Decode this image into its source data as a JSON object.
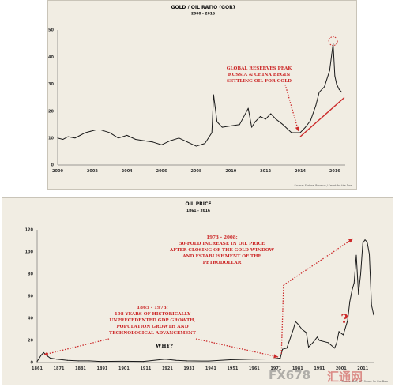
{
  "chart_data": [
    {
      "type": "line",
      "title": "GOLD / OIL RATIO (GOR)",
      "subtitle": "2000 - 2016",
      "x_ticks": [
        "2000",
        "2002",
        "2004",
        "2006",
        "2008",
        "2010",
        "2012",
        "2014",
        "2016"
      ],
      "y_ticks": [
        "0",
        "10",
        "20",
        "30",
        "40",
        "50"
      ],
      "xlim": [
        2000,
        2016.6
      ],
      "ylim": [
        0,
        50
      ],
      "grid": false,
      "series": [
        {
          "x": [
            2000.0,
            2000.3,
            2000.6,
            2001.0,
            2001.3,
            2001.6,
            2001.9,
            2002.2,
            2002.5,
            2003.0,
            2003.5,
            2004.0,
            2004.5,
            2005.0,
            2005.5,
            2006.0,
            2006.5,
            2007.0,
            2007.5,
            2008.0,
            2008.5,
            2008.9,
            2009.0,
            2009.2,
            2009.5,
            2010.0,
            2010.5,
            2011.0,
            2011.2,
            2011.4,
            2011.7,
            2012.0,
            2012.3,
            2012.6,
            2013.0,
            2013.5,
            2014.0,
            2014.3,
            2014.6,
            2014.9,
            2015.1,
            2015.4,
            2015.7,
            2015.9,
            2016.0,
            2016.1,
            2016.25,
            2016.4
          ],
          "y": [
            10,
            9.5,
            10.5,
            10,
            11,
            12,
            12.5,
            13,
            13,
            12,
            10,
            11,
            9.5,
            9,
            8.5,
            7.5,
            9,
            10,
            8.5,
            7,
            8,
            12,
            26,
            16,
            14,
            14.5,
            15,
            21,
            14,
            16,
            18,
            17,
            19,
            17,
            15,
            12,
            12,
            14,
            16.5,
            22,
            27,
            29,
            35,
            45,
            33,
            30,
            28,
            27
          ]
        }
      ],
      "annotations": {
        "peak_text": [
          "GLOBAL RESERVES PEAK",
          "RUSSIA & CHINA BEGIN",
          "SETTLING OIL FOR GOLD"
        ],
        "source": "Source: Federal Reserve / Smart for the Dow"
      }
    },
    {
      "type": "line",
      "title": "OIL PRICE",
      "subtitle": "1861 - 2016",
      "x_ticks": [
        "1861",
        "1871",
        "1881",
        "1891",
        "1901",
        "1911",
        "1921",
        "1931",
        "1941",
        "1951",
        "1961",
        "1971",
        "1981",
        "1991",
        "2001",
        "2011"
      ],
      "y_ticks": [
        "0",
        "20",
        "40",
        "60",
        "80",
        "100",
        "120"
      ],
      "xlim": [
        1861,
        2016
      ],
      "ylim": [
        0,
        120
      ],
      "grid": false,
      "series": [
        {
          "x": [
            1861,
            1862,
            1863,
            1864,
            1865,
            1867,
            1870,
            1875,
            1880,
            1885,
            1890,
            1900,
            1910,
            1920,
            1925,
            1930,
            1940,
            1950,
            1960,
            1970,
            1973,
            1974,
            1976,
            1979,
            1980,
            1981,
            1983,
            1985,
            1986,
            1988,
            1990,
            1991,
            1995,
            1998,
            1999,
            2000,
            2002,
            2004,
            2005,
            2006,
            2007,
            2008,
            2009,
            2010,
            2011,
            2012,
            2013,
            2014,
            2015,
            2016
          ],
          "y": [
            1,
            4,
            7,
            9,
            7,
            4,
            3,
            2,
            1.5,
            1.5,
            1,
            1.2,
            1,
            3,
            2,
            1.5,
            1.3,
            2.5,
            3,
            3.3,
            4,
            12,
            13,
            30,
            37,
            35,
            30,
            27,
            14,
            18,
            23,
            20,
            18,
            13,
            18,
            28,
            25,
            38,
            55,
            65,
            72,
            97,
            62,
            80,
            108,
            111,
            109,
            98,
            52,
            43
          ]
        }
      ],
      "annotations": {
        "growth_text": [
          "1865 - 1973:",
          "108 YEARS OF HISTORICALLY",
          "UNPRECEDENTED GDP GROWTH,",
          "POPULATION GROWTH AND",
          "TECHNOLOGICAL ADVANCEMENT"
        ],
        "why": "WHY?",
        "petro_text": [
          "1973 - 2008:",
          "50-FOLD INCREASE IN OIL PRICE",
          "AFTER CLOSING OF THE GOLD WINDOW",
          "AND ESTABLISHMENT OF THE",
          "PETRODOLLAR"
        ],
        "question": "?",
        "source": "Source: BoE, BP, Smart for the Dow"
      }
    }
  ],
  "watermark": {
    "brand": "FX678",
    "cn": "汇通网"
  }
}
